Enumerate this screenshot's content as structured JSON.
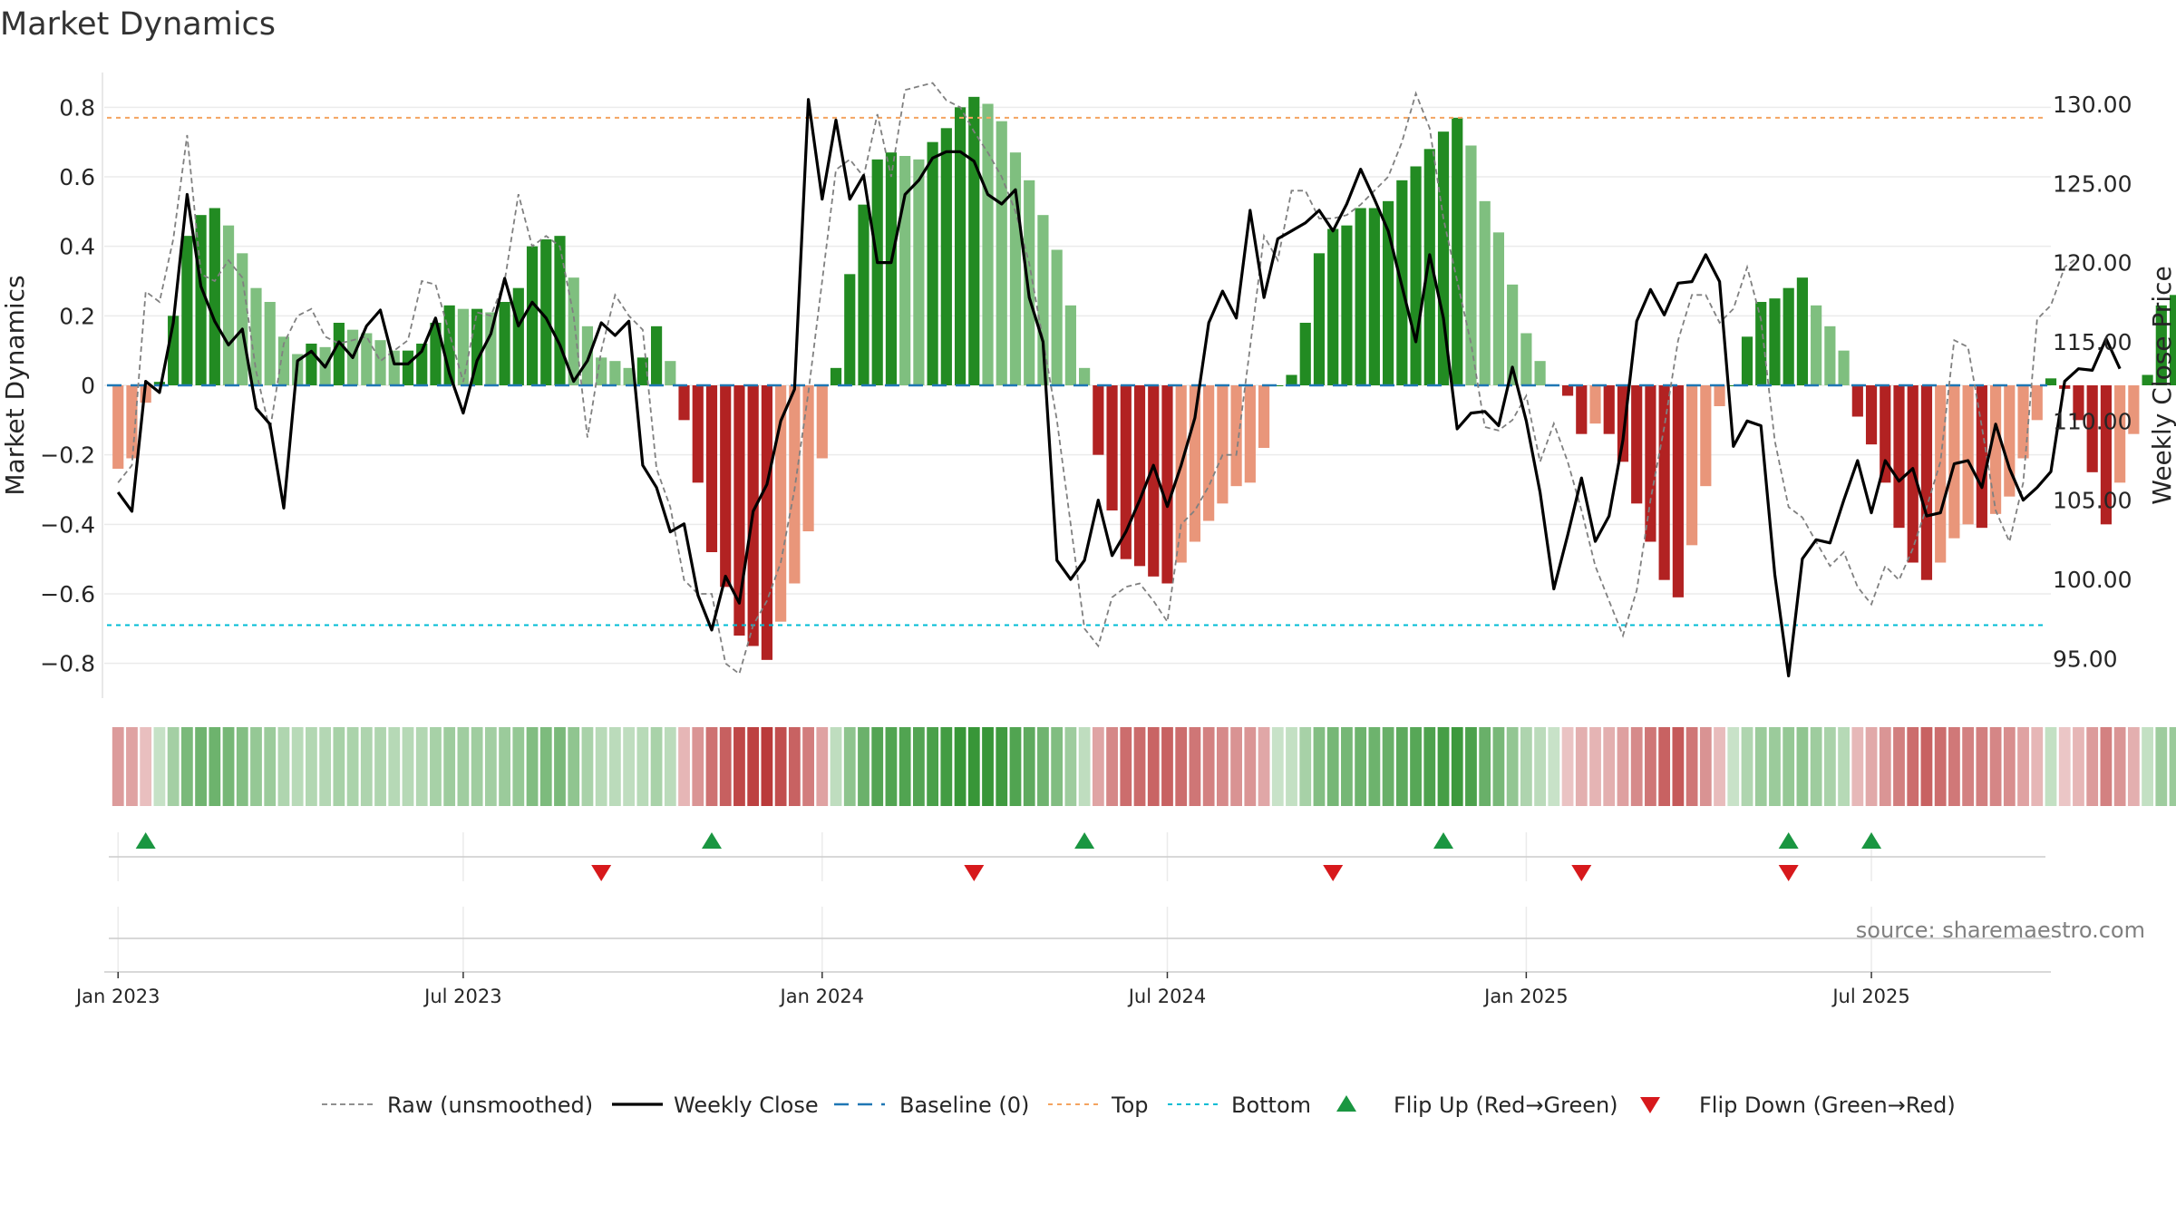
{
  "chart_data": {
    "type": "bar",
    "title": "Market Dynamics",
    "ylabel_left": "Market Dynamics",
    "ylabel_right": "Weekly Close Price",
    "ylim_left": [
      -0.9,
      0.9
    ],
    "ylim_right": [
      92.5,
      132.0
    ],
    "yticks_left": [
      0.8,
      0.6,
      0.4,
      0.2,
      0,
      -0.2,
      -0.4,
      -0.6,
      -0.8
    ],
    "ytick_labels_left": [
      "0.8",
      "0.6",
      "0.4",
      "0.2",
      "0",
      "−0.2",
      "−0.4",
      "−0.6",
      "−0.8"
    ],
    "yticks_right": [
      130,
      125,
      120,
      115,
      110,
      105,
      100,
      95
    ],
    "ytick_labels_right": [
      "130.00",
      "125.00",
      "120.00",
      "115.00",
      "110.00",
      "105.00",
      "100.00",
      "95.00"
    ],
    "top_level": 0.77,
    "bottom_level": -0.69,
    "x_range": [
      -1,
      140
    ],
    "x_ticks": [
      {
        "week": 0,
        "label": "Jan 2023"
      },
      {
        "week": 25,
        "label": "Jul 2023"
      },
      {
        "week": 51,
        "label": "Jan 2024"
      },
      {
        "week": 76,
        "label": "Jul 2024"
      },
      {
        "week": 102,
        "label": "Jan 2025"
      },
      {
        "week": 127,
        "label": "Jul 2025"
      }
    ],
    "dynamics_values": [
      -0.24,
      -0.21,
      -0.05,
      0.01,
      0.2,
      0.43,
      0.49,
      0.51,
      0.46,
      0.38,
      0.28,
      0.24,
      0.14,
      0.09,
      0.12,
      0.11,
      0.18,
      0.16,
      0.15,
      0.13,
      0.1,
      0.1,
      0.12,
      0.18,
      0.23,
      0.22,
      0.22,
      0.21,
      0.24,
      0.28,
      0.4,
      0.42,
      0.43,
      0.31,
      0.17,
      0.08,
      0.07,
      0.05,
      0.08,
      0.17,
      0.07,
      -0.1,
      -0.28,
      -0.48,
      -0.58,
      -0.72,
      -0.75,
      -0.79,
      -0.68,
      -0.57,
      -0.42,
      -0.21,
      0.05,
      0.32,
      0.52,
      0.65,
      0.67,
      0.66,
      0.65,
      0.7,
      0.74,
      0.8,
      0.83,
      0.81,
      0.76,
      0.67,
      0.59,
      0.49,
      0.39,
      0.23,
      0.05,
      -0.2,
      -0.36,
      -0.5,
      -0.52,
      -0.55,
      -0.57,
      -0.51,
      -0.45,
      -0.39,
      -0.34,
      -0.29,
      -0.28,
      -0.18,
      0.0,
      0.03,
      0.18,
      0.38,
      0.45,
      0.46,
      0.51,
      0.51,
      0.53,
      0.59,
      0.63,
      0.68,
      0.73,
      0.77,
      0.69,
      0.53,
      0.44,
      0.29,
      0.15,
      0.07,
      0.0,
      -0.03,
      -0.14,
      -0.11,
      -0.14,
      -0.22,
      -0.34,
      -0.45,
      -0.56,
      -0.61,
      -0.46,
      -0.29,
      -0.06,
      0.0,
      0.14,
      0.24,
      0.25,
      0.28,
      0.31,
      0.23,
      0.17,
      0.1,
      -0.09,
      -0.17,
      -0.28,
      -0.41,
      -0.51,
      -0.56,
      -0.51,
      -0.44,
      -0.4,
      -0.41,
      -0.37,
      -0.32,
      -0.21,
      -0.1,
      0.02,
      -0.01,
      -0.1,
      -0.25,
      -0.4,
      -0.28,
      -0.14,
      0.03,
      0.23,
      0.26
    ],
    "raw_values": [
      -0.28,
      -0.23,
      0.27,
      0.24,
      0.42,
      0.72,
      0.32,
      0.3,
      0.36,
      0.31,
      0.04,
      -0.13,
      0.12,
      0.2,
      0.22,
      0.14,
      0.12,
      0.13,
      0.14,
      0.07,
      0.1,
      0.13,
      0.3,
      0.29,
      0.15,
      0.01,
      0.21,
      0.2,
      0.3,
      0.55,
      0.4,
      0.43,
      0.4,
      0.2,
      -0.15,
      0.1,
      0.26,
      0.2,
      0.16,
      -0.24,
      -0.35,
      -0.56,
      -0.6,
      -0.6,
      -0.8,
      -0.83,
      -0.69,
      -0.62,
      -0.51,
      -0.3,
      -0.02,
      0.3,
      0.62,
      0.65,
      0.6,
      0.78,
      0.6,
      0.85,
      0.86,
      0.87,
      0.82,
      0.8,
      0.73,
      0.67,
      0.6,
      0.5,
      0.35,
      0.13,
      -0.1,
      -0.4,
      -0.7,
      -0.75,
      -0.61,
      -0.58,
      -0.57,
      -0.62,
      -0.68,
      -0.4,
      -0.36,
      -0.29,
      -0.2,
      -0.2,
      0.11,
      0.43,
      0.36,
      0.56,
      0.56,
      0.48,
      0.48,
      0.49,
      0.52,
      0.56,
      0.6,
      0.7,
      0.84,
      0.74,
      0.48,
      0.3,
      0.12,
      -0.12,
      -0.13,
      -0.1,
      -0.03,
      -0.22,
      -0.11,
      -0.22,
      -0.36,
      -0.52,
      -0.62,
      -0.72,
      -0.59,
      -0.33,
      -0.12,
      0.13,
      0.26,
      0.26,
      0.18,
      0.22,
      0.34,
      0.19,
      -0.16,
      -0.35,
      -0.38,
      -0.45,
      -0.52,
      -0.48,
      -0.58,
      -0.63,
      -0.52,
      -0.56,
      -0.47,
      -0.35,
      -0.22,
      0.13,
      0.11,
      -0.12,
      -0.36,
      -0.45,
      -0.28,
      0.19,
      0.23,
      0.34,
      0.37
    ],
    "price": [
      105.5,
      104.3,
      112.5,
      111.8,
      116.2,
      124.3,
      118.5,
      116.3,
      114.8,
      115.8,
      110.8,
      109.8,
      104.5,
      113.8,
      114.4,
      113.4,
      115.0,
      114.0,
      116.0,
      117.0,
      113.6,
      113.6,
      114.4,
      116.5,
      113.0,
      110.5,
      113.8,
      115.5,
      119.0,
      116.0,
      117.5,
      116.5,
      114.8,
      112.5,
      113.8,
      116.2,
      115.4,
      116.3,
      107.2,
      105.8,
      103.0,
      103.5,
      99.0,
      96.8,
      100.2,
      98.5,
      104.3,
      106.0,
      110.0,
      112.0,
      130.3,
      124.0,
      129.0,
      124.0,
      125.5,
      120.0,
      120.0,
      124.3,
      125.2,
      126.6,
      127.0,
      127.0,
      126.4,
      124.3,
      123.7,
      124.6,
      117.8,
      115.0,
      101.2,
      100.0,
      101.2,
      105.0,
      101.5,
      103.0,
      105.0,
      107.2,
      104.6,
      107.2,
      110.2,
      116.2,
      118.2,
      116.5,
      123.3,
      117.8,
      121.5,
      122.0,
      122.5,
      123.3,
      122.0,
      123.7,
      125.9,
      124.0,
      122.0,
      118.5,
      115.0,
      120.5,
      116.5,
      109.5,
      110.5,
      110.6,
      109.7,
      113.4,
      110.0,
      105.5,
      99.4,
      102.8,
      106.4,
      102.4,
      104.0,
      108.8,
      116.3,
      118.3,
      116.7,
      118.7,
      118.8,
      120.5,
      118.8,
      108.4,
      110.0,
      109.7,
      100.3,
      93.9,
      101.3,
      102.5,
      102.3,
      105.0,
      107.5,
      104.2,
      107.5,
      106.2,
      107.0,
      104.0,
      104.2,
      107.3,
      107.5,
      105.8,
      109.8,
      107.0,
      105.0,
      105.8,
      106.8,
      112.5,
      113.3,
      113.2,
      115.2,
      113.3
    ],
    "flips_up": [
      2,
      43,
      70,
      96,
      121,
      127
    ],
    "flips_down": [
      35,
      62,
      88,
      106,
      121
    ],
    "legend": [
      "Raw (unsmoothed)",
      "Weekly Close",
      "Baseline (0)",
      "Top",
      "Bottom",
      "Flip Up (Red→Green)",
      "Flip Down (Green→Red)"
    ]
  },
  "source_text": "source: sharemaestro.com",
  "colors": {
    "green_strong": "#228b22",
    "green_light": "#7fbf7f",
    "red_strong": "#b22222",
    "red_light": "#e9967a",
    "top_line": "#f4a460",
    "bottom_line": "#00bcd4",
    "baseline": "#1f77b4",
    "raw_line": "#808080",
    "price_line": "#000000",
    "flip_up": "#1a9641",
    "flip_down": "#d7191c",
    "grid": "#ebebeb"
  }
}
